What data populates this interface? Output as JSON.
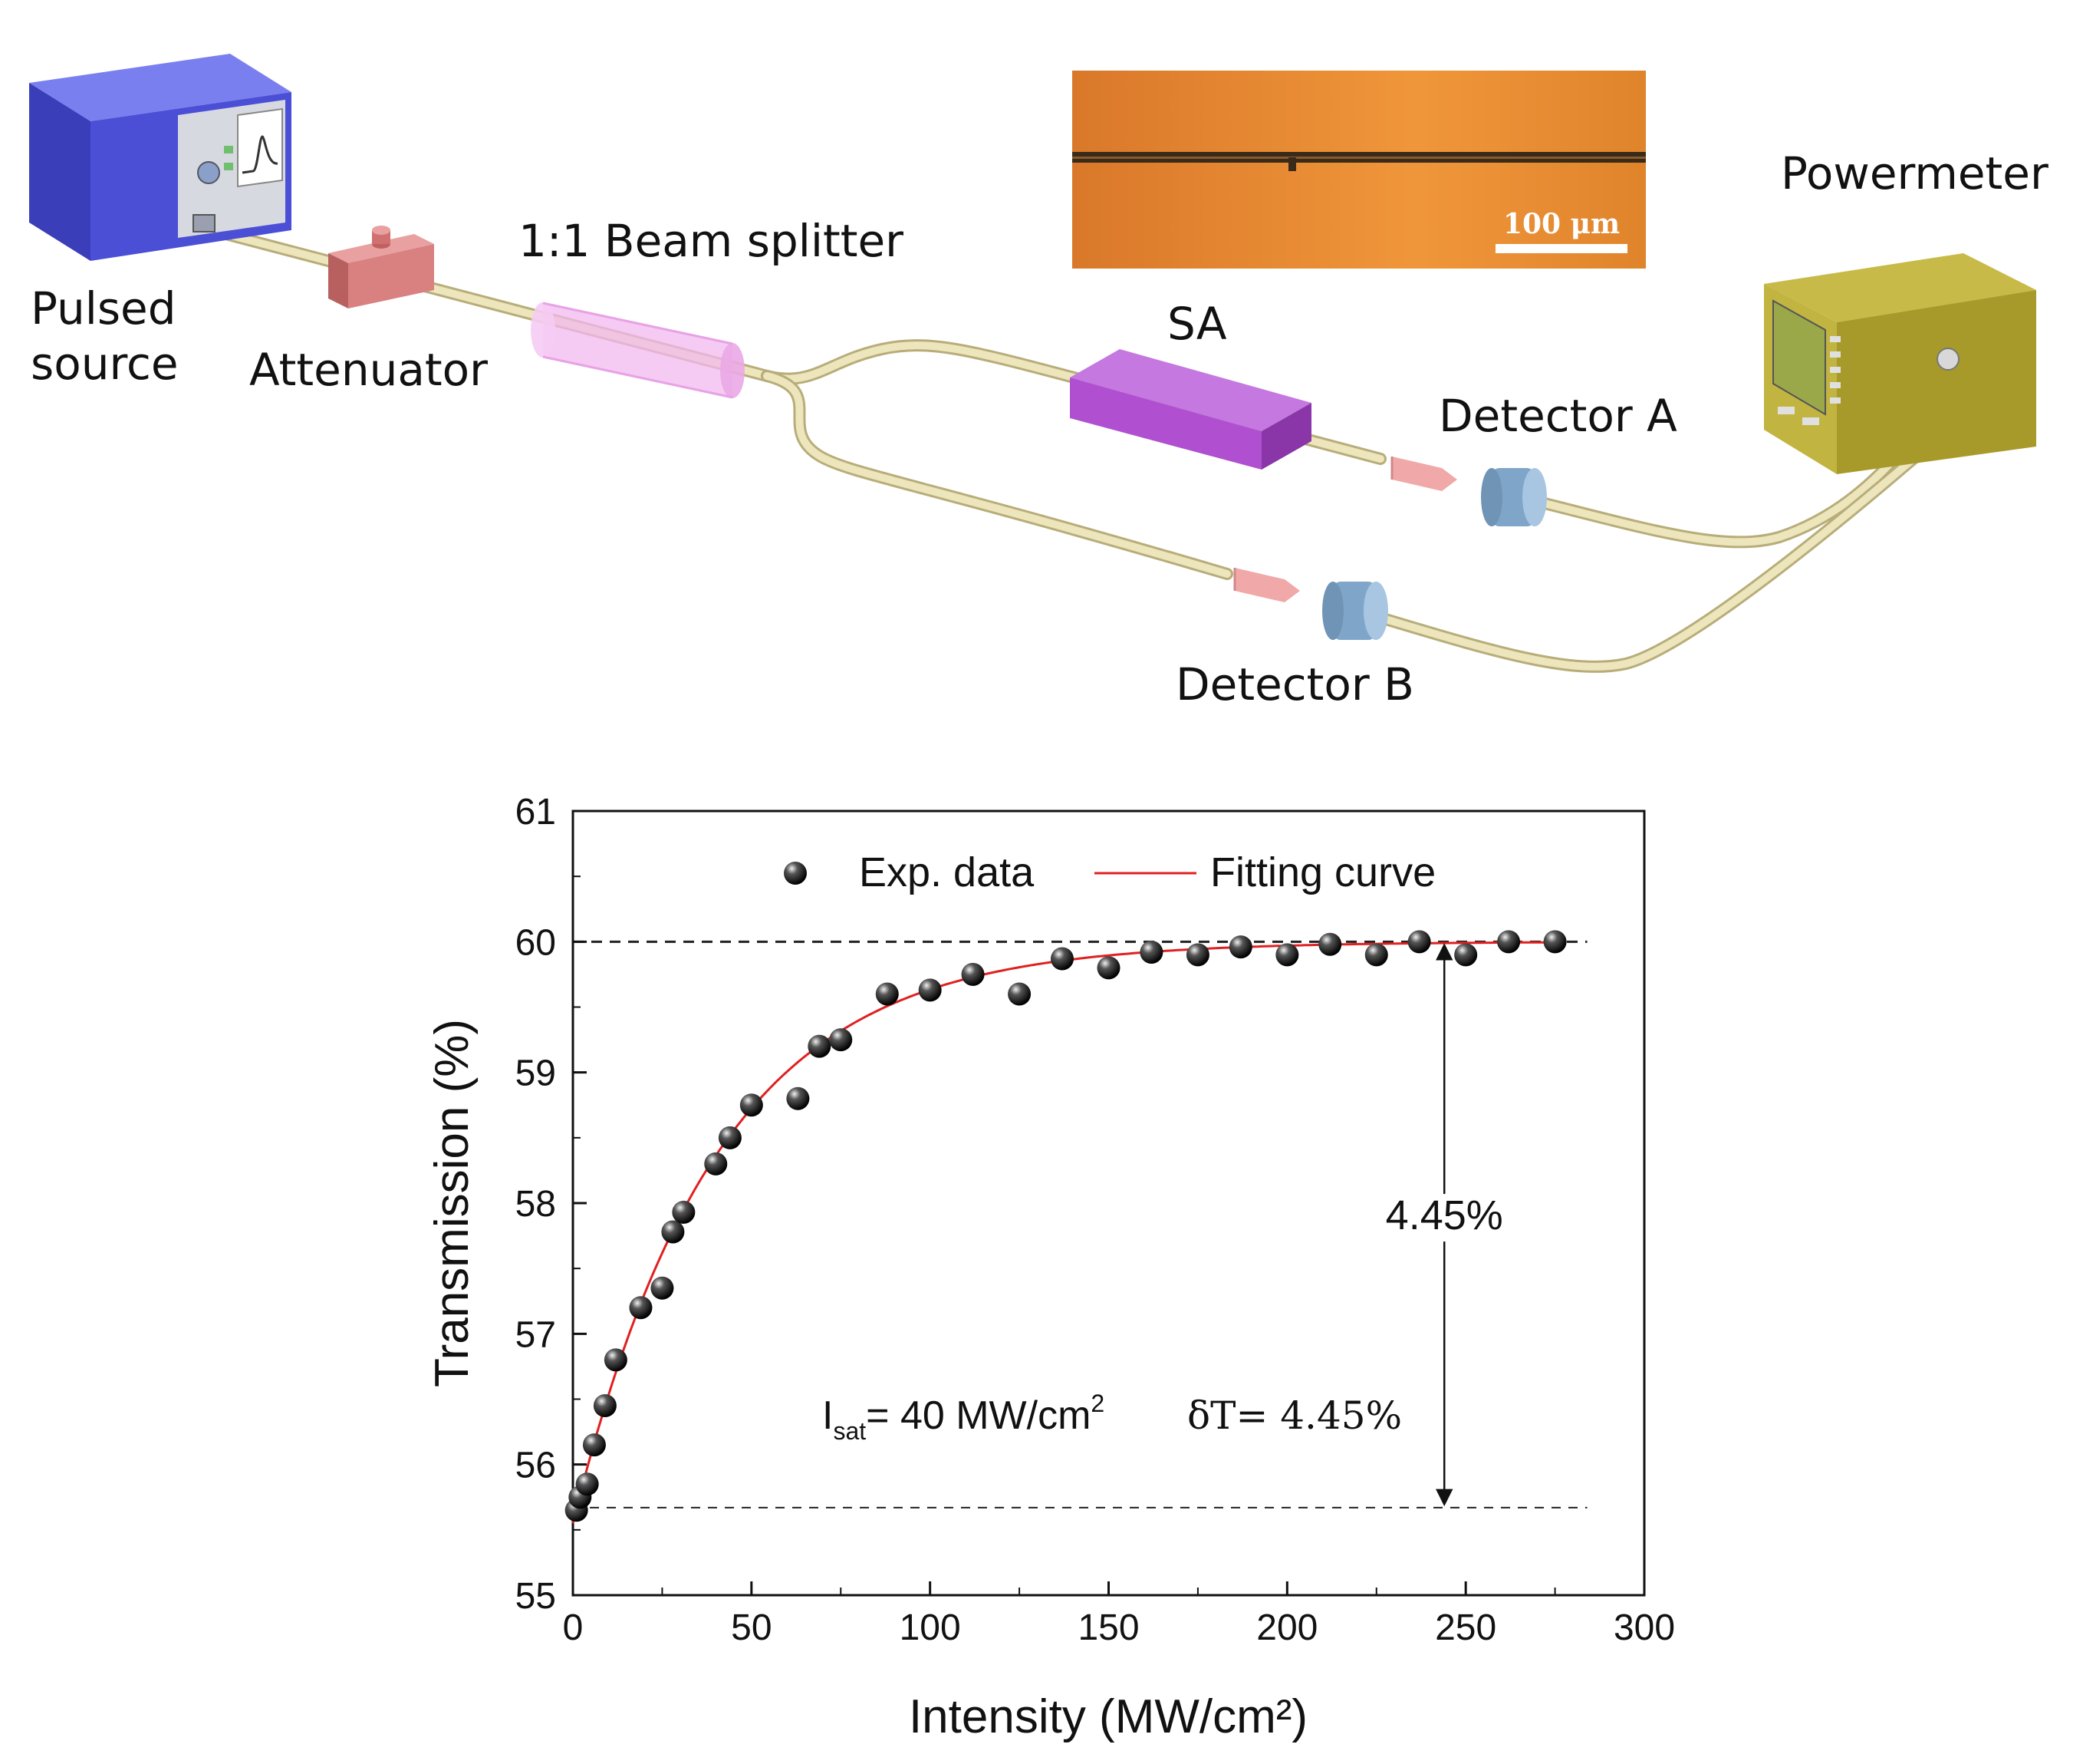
{
  "setup": {
    "labels": {
      "pulsed_source_line1": "Pulsed",
      "pulsed_source_line2": "source",
      "attenuator": "Attenuator",
      "beam_splitter": "1:1 Beam splitter",
      "sa": "SA",
      "powermeter": "Powermeter",
      "detector_a": "Detector A",
      "detector_b": "Detector B"
    },
    "micrograph": {
      "scale_bar_label": "100 μm"
    },
    "colors": {
      "source_box": "#4b4fd6",
      "attenuator": "#d98080",
      "beam_splitter": "#f2b8ef",
      "sa": "#b04fd0",
      "detector": "#8fb6d6",
      "connector": "#f0a8a8",
      "powermeter": "#a89a2a",
      "fiber": "#e8e0b0",
      "micrograph": "#e8892e"
    }
  },
  "chart_data": {
    "type": "scatter",
    "xlabel": "Intensity (MW/cm²)",
    "ylabel": "Transmission (%)",
    "xlim": [
      0,
      300
    ],
    "ylim": [
      55,
      61
    ],
    "xticks": [
      0,
      50,
      100,
      150,
      200,
      250,
      300
    ],
    "yticks": [
      55,
      56,
      57,
      58,
      59,
      60,
      61
    ],
    "legend": {
      "placement": "top-center",
      "entries": [
        {
          "label": "Exp. data",
          "kind": "marker"
        },
        {
          "label": "Fitting curve",
          "kind": "line",
          "color": "#e02020"
        }
      ]
    },
    "series": [
      {
        "name": "Exp. data",
        "x": [
          1,
          2,
          4,
          6,
          9,
          12,
          19,
          25,
          28,
          31,
          40,
          44,
          50,
          63,
          69,
          75,
          88,
          100,
          112,
          125,
          137,
          150,
          162,
          175,
          187,
          200,
          212,
          225,
          237,
          250,
          262,
          275
        ],
        "y": [
          55.65,
          55.75,
          55.85,
          56.15,
          56.45,
          56.8,
          57.2,
          57.35,
          57.78,
          57.93,
          58.3,
          58.5,
          58.75,
          58.8,
          59.2,
          59.25,
          59.6,
          59.63,
          59.75,
          59.6,
          59.87,
          59.8,
          59.92,
          59.9,
          59.96,
          59.9,
          59.98,
          59.9,
          60.0,
          59.9,
          60.0,
          60.0
        ]
      },
      {
        "name": "Fitting curve",
        "model": "T(I) = 60 - 4.45 * exp(-I / 40)",
        "color": "#e02020",
        "x_range": [
          0,
          275
        ]
      }
    ],
    "reference_lines": [
      {
        "y": 60.0,
        "style": "dashed"
      },
      {
        "y": 55.67,
        "style": "dashed"
      }
    ],
    "annotations": {
      "depth_label": "4.45%",
      "depth_arrow_x": 244,
      "isat_prefix": "I",
      "isat_sub": "sat",
      "isat_value": "= 40 MW/cm",
      "isat_sup": "2",
      "delta_t": "δT= 4.45%"
    }
  }
}
